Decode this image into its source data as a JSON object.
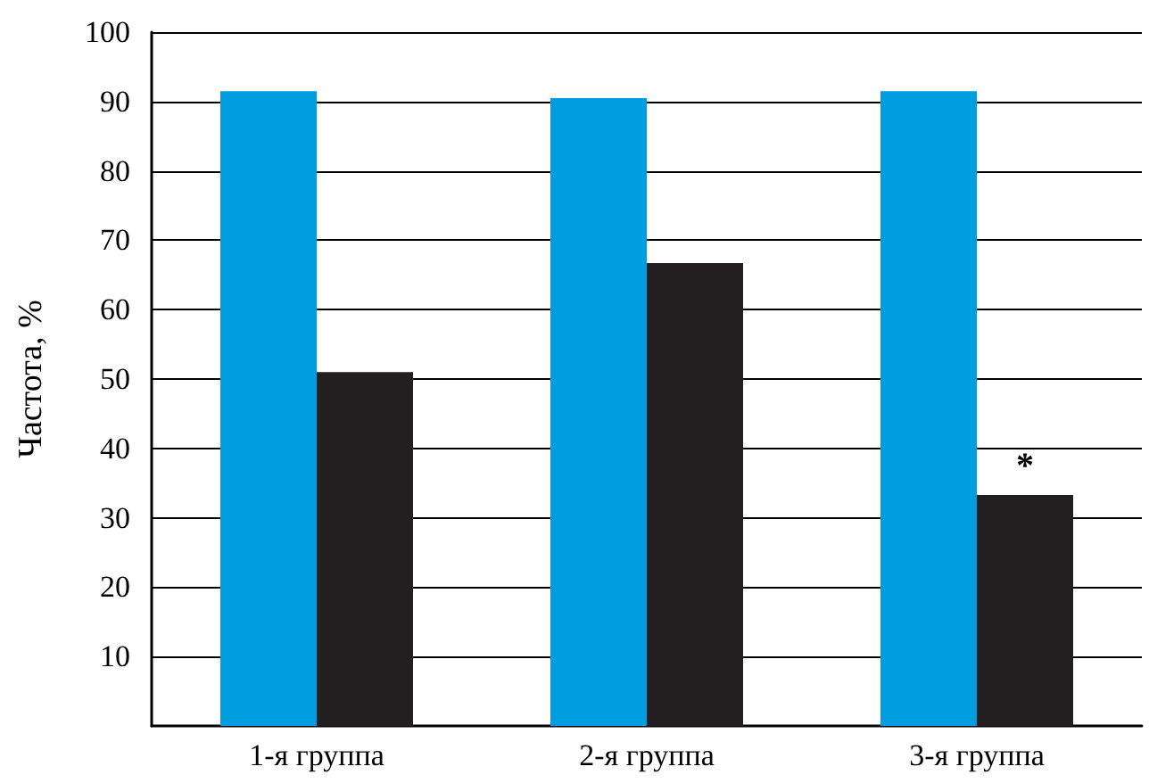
{
  "chart_data": {
    "type": "bar",
    "ylabel": "Частота, %",
    "categories": [
      "1-я группа",
      "2-я группа",
      "3-я группа"
    ],
    "series": [
      {
        "color": "#009ee0",
        "values": [
          91.5,
          90.5,
          91.5
        ]
      },
      {
        "color": "#231f20",
        "values": [
          51,
          66.7,
          33.3
        ]
      }
    ],
    "ylim": [
      0,
      100
    ],
    "yticks": [
      10,
      20,
      30,
      40,
      50,
      60,
      70,
      80,
      90,
      100
    ],
    "grid": "y",
    "annotations": [
      {
        "text": "*",
        "x": "3-я группа",
        "y": 33.3
      }
    ]
  }
}
